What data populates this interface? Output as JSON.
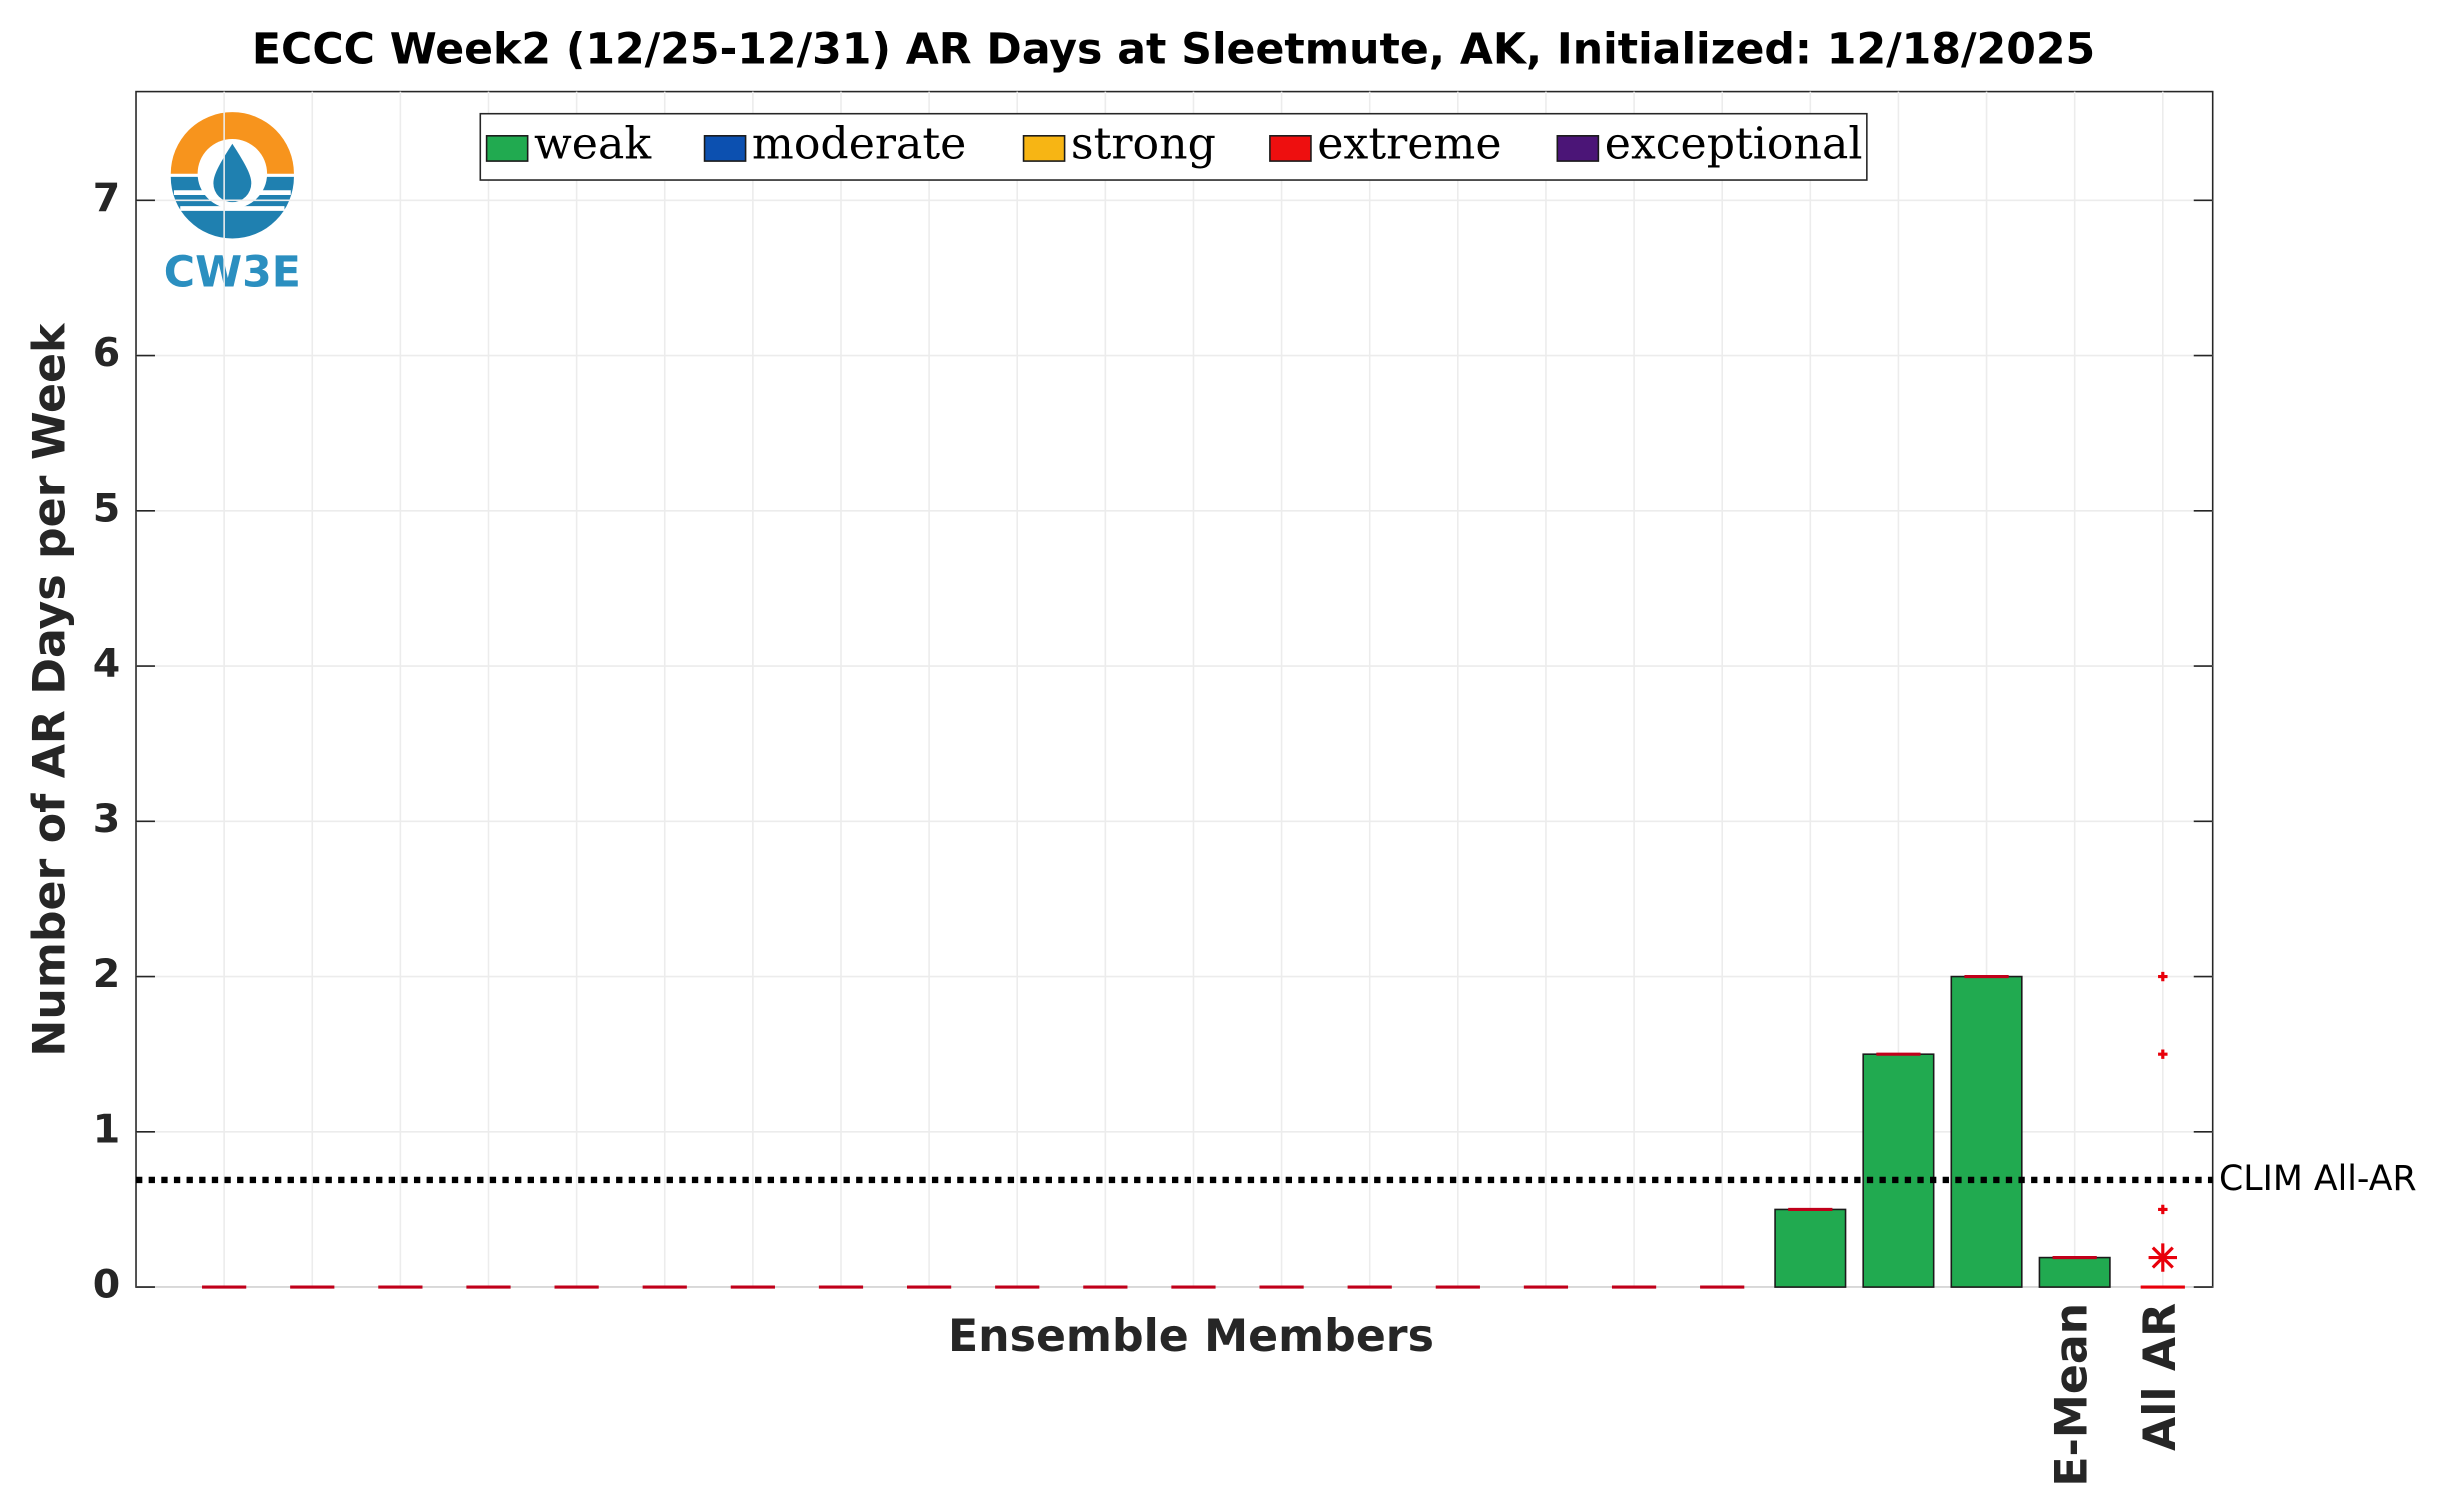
{
  "logo": "CW3E",
  "chart_data": {
    "type": "bar",
    "title": "ECCC Week2 (12/25-12/31) AR Days at Sleetmute, AK, Initialized: 12/18/2025",
    "y_label": "Number of AR Days per Week",
    "x_label": "Ensemble Members",
    "stacked": true,
    "categories": [
      null,
      null,
      null,
      null,
      null,
      null,
      null,
      null,
      null,
      null,
      null,
      null,
      null,
      null,
      null,
      null,
      null,
      null,
      null,
      null,
      null,
      "E-Mean"
    ],
    "series": [
      {
        "name": "weak",
        "color": "#21aa50",
        "values": [
          0,
          0,
          0,
          0,
          0,
          0,
          0,
          0,
          0,
          0,
          0,
          0,
          0,
          0,
          0,
          0,
          0,
          0,
          0.5,
          1.5,
          2,
          0.19
        ]
      },
      {
        "name": "moderate",
        "color": "#0c50b0",
        "values": [
          0,
          0,
          0,
          0,
          0,
          0,
          0,
          0,
          0,
          0,
          0,
          0,
          0,
          0,
          0,
          0,
          0,
          0,
          0,
          0,
          0,
          0
        ]
      },
      {
        "name": "strong",
        "color": "#f7b514",
        "values": [
          0,
          0,
          0,
          0,
          0,
          0,
          0,
          0,
          0,
          0,
          0,
          0,
          0,
          0,
          0,
          0,
          0,
          0,
          0,
          0,
          0,
          0
        ]
      },
      {
        "name": "extreme",
        "color": "#ee0f0f",
        "values": [
          0,
          0,
          0,
          0,
          0,
          0,
          0,
          0,
          0,
          0,
          0,
          0,
          0,
          0,
          0,
          0,
          0,
          0,
          0,
          0,
          0,
          0
        ]
      },
      {
        "name": "exceptional",
        "color": "#4b1577",
        "values": [
          0,
          0,
          0,
          0,
          0,
          0,
          0,
          0,
          0,
          0,
          0,
          0,
          0,
          0,
          0,
          0,
          0,
          0,
          0,
          0,
          0,
          0
        ]
      }
    ],
    "boxplot": {
      "label": "All AR",
      "color": "#e8000b",
      "median": 0,
      "mean": 0.19,
      "outliers": [
        2,
        1.5,
        0.5
      ]
    },
    "reference_line": {
      "value": 0.69,
      "label": "CLIM All-AR"
    },
    "ylim": [
      0,
      7.7
    ],
    "yticks": [
      0,
      1,
      2,
      3,
      4,
      5,
      6,
      7
    ],
    "grid": true,
    "legend": "top"
  }
}
